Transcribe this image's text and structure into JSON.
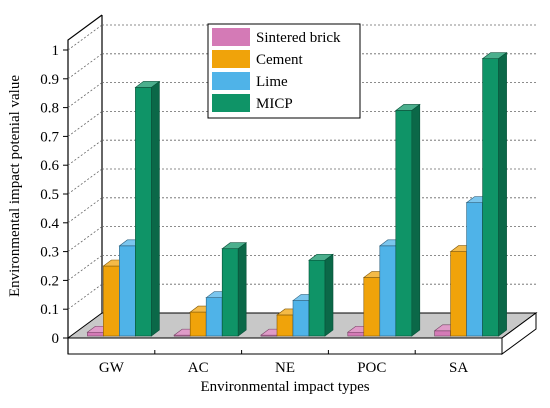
{
  "chart_data": {
    "type": "bar",
    "title": "",
    "xlabel": "Environmental impact types",
    "ylabel": "Environmental impact potenial value",
    "categories": [
      "GW",
      "AC",
      "NE",
      "POC",
      "SA"
    ],
    "ylim": [
      0,
      1
    ],
    "yticks": [
      "0",
      "0.1",
      "0.2",
      "0.3",
      "0.4",
      "0.5",
      "0.6",
      "0.7",
      "0.8",
      "0.9",
      "1"
    ],
    "grid": true,
    "legend_position": "top-center",
    "series": [
      {
        "name": "Sintered brick",
        "color": "#d47ab6",
        "values": [
          0.02,
          0.01,
          0.01,
          0.02,
          0.025
        ]
      },
      {
        "name": "Cement",
        "color": "#f0a30a",
        "values": [
          0.25,
          0.09,
          0.08,
          0.21,
          0.3
        ]
      },
      {
        "name": "Lime",
        "color": "#4fb3e8",
        "values": [
          0.32,
          0.14,
          0.13,
          0.32,
          0.47
        ]
      },
      {
        "name": "MICP",
        "color": "#0f9467",
        "values": [
          0.87,
          0.31,
          0.27,
          0.79,
          0.97
        ]
      }
    ]
  }
}
